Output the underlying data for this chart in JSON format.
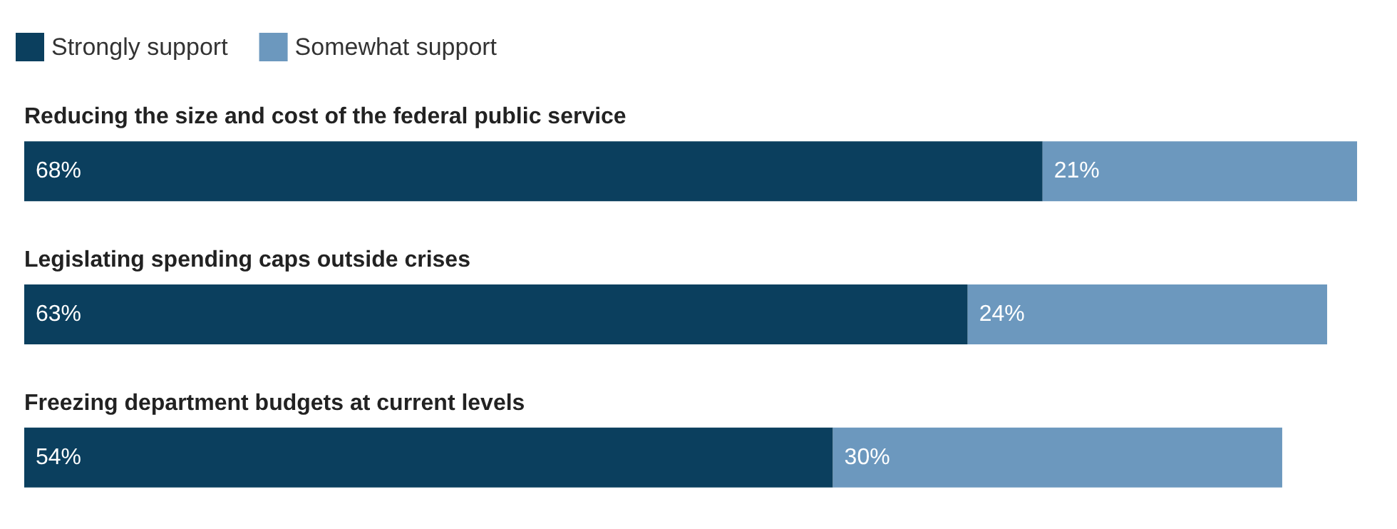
{
  "chart_data": {
    "type": "bar",
    "orientation": "horizontal",
    "stacked": true,
    "tick_labels": "y",
    "legend": "top left",
    "categories": [
      "Reducing the size and cost of the federal public service",
      "Legislating spending caps outside crises",
      "Freezing department budgets at current levels"
    ],
    "series": [
      {
        "name": "Strongly support",
        "color": "#0b3f5e",
        "values": [
          68,
          63,
          54
        ],
        "value_labels": [
          "68%",
          "63%",
          "54%"
        ]
      },
      {
        "name": "Somewhat support",
        "color": "#6c98be",
        "values": [
          21,
          24,
          30
        ],
        "value_labels": [
          "21%",
          "24%",
          "30%"
        ]
      }
    ]
  }
}
